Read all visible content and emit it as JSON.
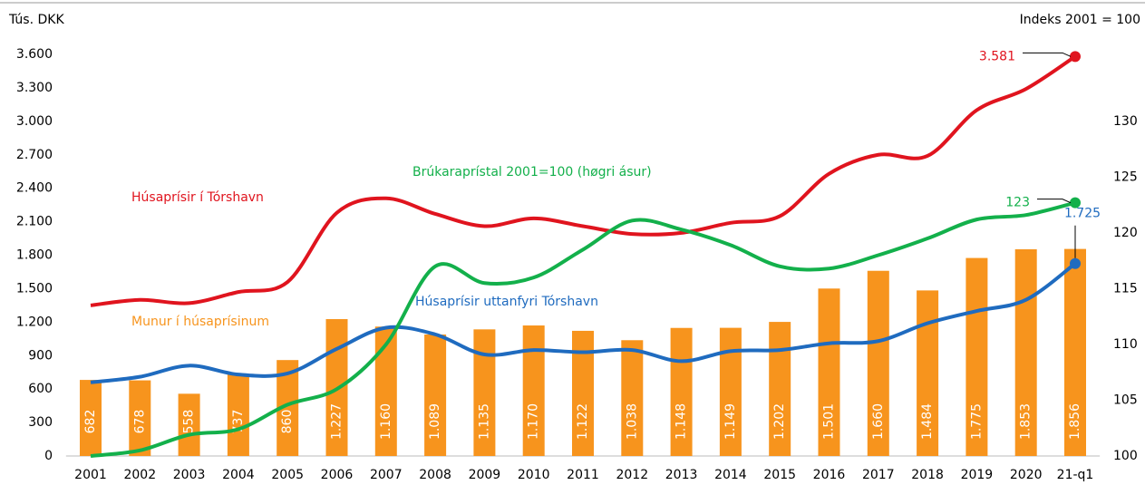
{
  "chart_data": {
    "type": "bar_line",
    "y_axis_label": "Tús. DKK",
    "y2_axis_label": "Indeks 2001 = 100",
    "categories": [
      "2001",
      "2002",
      "2003",
      "2004",
      "2005",
      "2006",
      "2007",
      "2008",
      "2009",
      "2010",
      "2011",
      "2012",
      "2013",
      "2014",
      "2015",
      "2016",
      "2017",
      "2018",
      "2019",
      "2020",
      "21-q1"
    ],
    "ylim": [
      0,
      3600
    ],
    "yticks": [
      0,
      300,
      600,
      900,
      {
        "value": 1200,
        "label": "1.200"
      },
      {
        "value": 1500,
        "label": "1.500"
      },
      {
        "value": 1800,
        "label": "1.800"
      },
      {
        "value": 2100,
        "label": "2.100"
      },
      {
        "value": 2400,
        "label": "2.400"
      },
      {
        "value": 2700,
        "label": "2.700"
      },
      {
        "value": 3000,
        "label": "3.000"
      },
      {
        "value": 3300,
        "label": "3.300"
      },
      {
        "value": 3600,
        "label": "3.600"
      }
    ],
    "y2lim": [
      100,
      136
    ],
    "y2ticks": [
      100,
      105,
      110,
      115,
      120,
      125,
      130
    ],
    "series": [
      {
        "name": "Munur í húsaprísinum",
        "type": "bar",
        "color": "#f7941d",
        "values": [
          682,
          678,
          558,
          737,
          860,
          1227,
          1160,
          1089,
          1135,
          1170,
          1122,
          1038,
          1148,
          1149,
          1202,
          1501,
          1660,
          1484,
          1775,
          1853,
          1856
        ],
        "value_labels": [
          "682",
          "678",
          "558",
          "737",
          "860",
          "1.227",
          "1.160",
          "1.089",
          "1.135",
          "1.170",
          "1.122",
          "1.038",
          "1.148",
          "1.149",
          "1.202",
          "1.501",
          "1.660",
          "1.484",
          "1.775",
          "1.853",
          "1.856"
        ]
      },
      {
        "name": "Húsaprísir í Tórshavn",
        "type": "line",
        "color": "#e0141e",
        "values": [
          1350,
          1400,
          1370,
          1470,
          1560,
          2180,
          2310,
          2170,
          2060,
          2130,
          2060,
          1990,
          2000,
          2090,
          2150,
          2530,
          2700,
          2690,
          3100,
          3290,
          3581
        ],
        "end_label": "3.581"
      },
      {
        "name": "Húsaprísir uttanfyri Tórshavn",
        "type": "line",
        "color": "#1f6bbf",
        "values": [
          660,
          710,
          810,
          730,
          740,
          960,
          1150,
          1090,
          910,
          950,
          930,
          950,
          850,
          940,
          950,
          1010,
          1030,
          1190,
          1300,
          1400,
          1725
        ],
        "end_label": "1.725"
      },
      {
        "name": "Brúkaraprístal 2001=100 (høgri ásur)",
        "type": "line",
        "axis": "y2",
        "color": "#13b04b",
        "values": [
          100,
          100.5,
          101.9,
          102.4,
          104.6,
          106,
          110,
          117,
          115.5,
          116,
          118.5,
          121.1,
          120.3,
          118.9,
          117,
          116.8,
          118,
          119.5,
          121.2,
          121.6,
          122.7
        ],
        "end_label": "123"
      }
    ]
  }
}
